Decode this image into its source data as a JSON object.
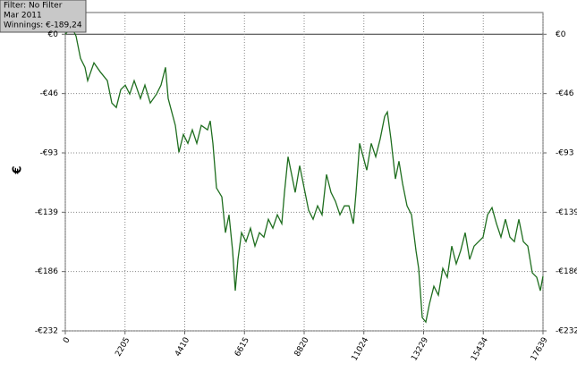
{
  "filter": "Filter: No Filter",
  "period": "Mar 2011",
  "winnings": "Winnings: €-189,24",
  "chart_data": {
    "type": "line",
    "ylabel": "€",
    "xlim": [
      0,
      17639
    ],
    "xticks": [
      0,
      2205,
      4410,
      6615,
      8820,
      11024,
      13229,
      15434,
      17639
    ],
    "ylim": [
      -232,
      17
    ],
    "yticks": [
      {
        "value": 0,
        "label": "€0"
      },
      {
        "value": -46.4,
        "label": "-€46"
      },
      {
        "value": -92.8,
        "label": "-€93"
      },
      {
        "value": -139.2,
        "label": "-€139"
      },
      {
        "value": -185.6,
        "label": "-€186"
      },
      {
        "value": -232,
        "label": "-€232"
      }
    ],
    "grid": true,
    "series": [
      {
        "color": "#1f6e1f",
        "x": [
          0,
          231,
          396,
          562,
          727,
          826,
          1057,
          1288,
          1552,
          1718,
          1883,
          2048,
          2213,
          2378,
          2543,
          2775,
          2940,
          3138,
          3369,
          3534,
          3700,
          3798,
          3931,
          4063,
          4195,
          4360,
          4525,
          4690,
          4855,
          5021,
          5252,
          5351,
          5450,
          5582,
          5780,
          5912,
          6044,
          6177,
          6276,
          6375,
          6507,
          6672,
          6837,
          7002,
          7168,
          7333,
          7498,
          7663,
          7828,
          7993,
          8092,
          8224,
          8357,
          8489,
          8654,
          8819,
          8984,
          9149,
          9314,
          9480,
          9645,
          9810,
          9975,
          10140,
          10305,
          10471,
          10636,
          10735,
          10867,
          10999,
          11131,
          11296,
          11461,
          11627,
          11792,
          11891,
          12023,
          12188,
          12320,
          12452,
          12617,
          12783,
          12948,
          13047,
          13179,
          13311,
          13443,
          13608,
          13774,
          13939,
          14104,
          14269,
          14434,
          14599,
          14764,
          14930,
          15095,
          15260,
          15425,
          15590,
          15755,
          15920,
          16086,
          16251,
          16416,
          16581,
          16746,
          16911,
          17077,
          17242,
          17407,
          17539,
          17639
        ],
        "values": [
          0,
          5.6,
          -1.4,
          -18.9,
          -25.9,
          -36.3,
          -22.4,
          -29.4,
          -36.3,
          -53.8,
          -57.3,
          -43.3,
          -39.8,
          -46.8,
          -36.3,
          -50.3,
          -39.8,
          -53.8,
          -46.8,
          -39.8,
          -25.9,
          -50.3,
          -60.8,
          -71.3,
          -92.3,
          -78.3,
          -85.3,
          -74.8,
          -85.3,
          -71.3,
          -74.8,
          -67.8,
          -85.3,
          -120.2,
          -127.2,
          -155.2,
          -141.2,
          -169.2,
          -200.6,
          -176.1,
          -155.2,
          -162.2,
          -151.7,
          -165.7,
          -155.2,
          -158.7,
          -144.7,
          -151.7,
          -141.2,
          -148.2,
          -123.7,
          -95.8,
          -109.7,
          -123.7,
          -102.8,
          -120.2,
          -137.7,
          -144.7,
          -134.2,
          -141.2,
          -109.7,
          -123.7,
          -130.7,
          -141.2,
          -134.2,
          -134.2,
          -148.2,
          -123.7,
          -85.3,
          -95.8,
          -106.3,
          -85.3,
          -95.8,
          -81.8,
          -64.3,
          -60.8,
          -81.8,
          -113.2,
          -99.3,
          -116.7,
          -134.2,
          -141.2,
          -169.2,
          -183.1,
          -221.6,
          -225.1,
          -211.1,
          -197.1,
          -204.1,
          -183.1,
          -190.1,
          -165.7,
          -179.6,
          -169.2,
          -155.2,
          -176.1,
          -165.7,
          -162.2,
          -158.7,
          -141.2,
          -135.6,
          -148.2,
          -158.7,
          -144.7,
          -158.7,
          -162.2,
          -144.7,
          -162.2,
          -165.7,
          -186.6,
          -190.1,
          -200.6,
          -189.2
        ]
      }
    ]
  }
}
